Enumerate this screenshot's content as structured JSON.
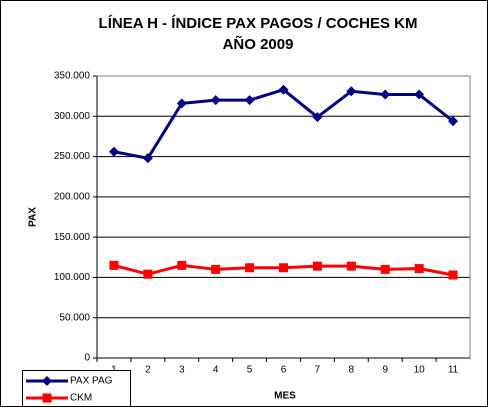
{
  "chart_data": {
    "type": "line",
    "title": "LÍNEA H - ÍNDICE PAX PAGOS / COCHES KM",
    "subtitle": "AÑO 2009",
    "x_label": "MES",
    "y_label": "PAX",
    "categories": [
      "1",
      "2",
      "3",
      "4",
      "5",
      "6",
      "7",
      "8",
      "9",
      "10",
      "11"
    ],
    "series": [
      {
        "name": "PAX PAG",
        "color": "#000080",
        "marker": "diamond",
        "values": [
          256000,
          248000,
          316000,
          320000,
          320000,
          333000,
          299000,
          331000,
          327000,
          327000,
          294000
        ]
      },
      {
        "name": "CKM",
        "color": "#ff0000",
        "marker": "square",
        "values": [
          115000,
          104000,
          115000,
          110000,
          112000,
          112000,
          114000,
          114000,
          110000,
          111000,
          103000
        ]
      }
    ],
    "ylim": [
      0,
      350000
    ],
    "yticks": [
      0,
      {
        "value": 50000,
        "label": "50.000"
      },
      {
        "value": 100000,
        "label": "100.000"
      },
      {
        "value": 150000,
        "label": "150.000"
      },
      {
        "value": 200000,
        "label": "200.000"
      },
      {
        "value": 250000,
        "label": "250.000"
      },
      {
        "value": 300000,
        "label": "300.000"
      },
      {
        "value": 350000,
        "label": "350.000"
      }
    ],
    "grid": true,
    "legend": "bottom-left"
  }
}
